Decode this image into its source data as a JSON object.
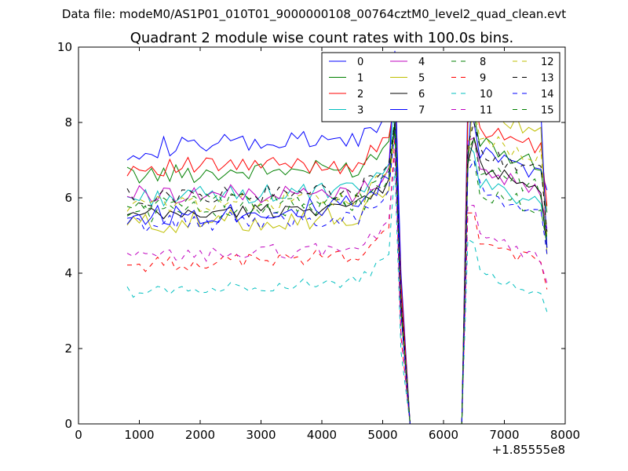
{
  "chart_data": {
    "type": "line",
    "suptitle": "Data file: modeM0/AS1P01_010T01_9000000108_00764cztM0_level2_quad_clean.evt",
    "title": "Quadrant 2 module wise count rates with 100.0s bins.",
    "xlabel": "",
    "ylabel": "",
    "xlim": [
      0,
      8000
    ],
    "ylim": [
      0,
      10
    ],
    "x_offset_label": "+1.85555e8",
    "xticks": [
      0,
      1000,
      2000,
      3000,
      4000,
      5000,
      6000,
      7000,
      8000
    ],
    "xtick_labels": [
      "0",
      "1000",
      "2000",
      "3000",
      "4000",
      "5000",
      "6000",
      "7000",
      "8000"
    ],
    "yticks": [
      0,
      2,
      4,
      6,
      8,
      10
    ],
    "ytick_labels": [
      "0",
      "2",
      "4",
      "6",
      "8",
      "10"
    ],
    "grid": false,
    "legend": {
      "placement": "top-right",
      "columns": 4
    },
    "series": [
      {
        "name": "0",
        "color": "#0000ff",
        "dash": "solid",
        "level": 7.3,
        "amp": 0.3,
        "peak": 9.3,
        "p2": 8.0,
        "rise": 0.25
      },
      {
        "name": "1",
        "color": "#008000",
        "dash": "solid",
        "level": 6.6,
        "amp": 0.25,
        "peak": 8.6,
        "p2": 8.2,
        "rise": 0.2
      },
      {
        "name": "2",
        "color": "#ff0000",
        "dash": "solid",
        "level": 6.8,
        "amp": 0.25,
        "peak": 8.6,
        "p2": 8.6,
        "rise": 0.1
      },
      {
        "name": "3",
        "color": "#00bfbf",
        "dash": "solid",
        "level": 6.0,
        "amp": 0.25,
        "peak": 8.4,
        "p2": 7.2,
        "rise": 0.2
      },
      {
        "name": "4",
        "color": "#bf00bf",
        "dash": "solid",
        "level": 6.1,
        "amp": 0.25,
        "peak": 9.6,
        "p2": 7.6,
        "rise": 0.0
      },
      {
        "name": "5",
        "color": "#bfbf00",
        "dash": "solid",
        "level": 5.3,
        "amp": 0.3,
        "peak": 8.0,
        "p2": 9.2,
        "rise": 0.2
      },
      {
        "name": "6",
        "color": "#000000",
        "dash": "solid",
        "level": 5.5,
        "amp": 0.2,
        "peak": 8.0,
        "p2": 7.6,
        "rise": 0.3
      },
      {
        "name": "7",
        "color": "#0000ff",
        "dash": "solid",
        "level": 5.5,
        "amp": 0.3,
        "peak": 9.9,
        "p2": 9.7,
        "rise": 0.3
      },
      {
        "name": "8",
        "color": "#008000",
        "dash": "dashed",
        "level": 5.6,
        "amp": 0.25,
        "peak": 8.2,
        "p2": 7.0,
        "rise": 0.2
      },
      {
        "name": "9",
        "color": "#ff0000",
        "dash": "dashed",
        "level": 4.2,
        "amp": 0.2,
        "peak": 7.6,
        "p2": 5.6,
        "rise": 0.3
      },
      {
        "name": "10",
        "color": "#00bfbf",
        "dash": "dashed",
        "level": 3.5,
        "amp": 0.15,
        "peak": 6.8,
        "p2": 4.8,
        "rise": 0.3
      },
      {
        "name": "11",
        "color": "#bf00bf",
        "dash": "dashed",
        "level": 4.4,
        "amp": 0.2,
        "peak": 7.2,
        "p2": 5.8,
        "rise": 0.3
      },
      {
        "name": "12",
        "color": "#bfbf00",
        "dash": "dashed",
        "level": 5.8,
        "amp": 0.25,
        "peak": 7.8,
        "p2": 8.4,
        "rise": 0.2
      },
      {
        "name": "13",
        "color": "#000000",
        "dash": "dashed",
        "level": 6.0,
        "amp": 0.25,
        "peak": 8.0,
        "p2": 8.0,
        "rise": 0.2
      },
      {
        "name": "14",
        "color": "#0000ff",
        "dash": "dashed",
        "level": 5.3,
        "amp": 0.25,
        "peak": 7.8,
        "p2": 7.0,
        "rise": 0.2
      },
      {
        "name": "15",
        "color": "#008000",
        "dash": "dashed",
        "level": 5.8,
        "amp": 0.25,
        "peak": 7.8,
        "p2": 7.6,
        "rise": 0.2
      }
    ]
  }
}
